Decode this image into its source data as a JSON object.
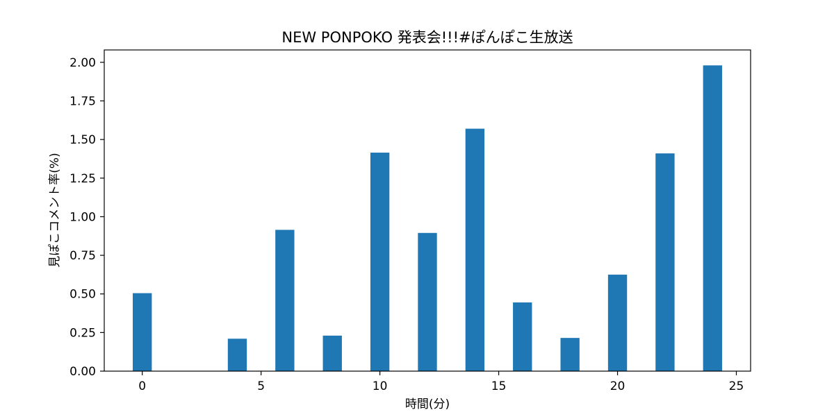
{
  "chart_data": {
    "type": "bar",
    "title": "NEW PONPOKO 発表会!!!#ぽんぽこ生放送",
    "xlabel": "時間(分)",
    "ylabel": "見ぽこコメント率(%)",
    "x": [
      0,
      4,
      6,
      8,
      10,
      12,
      14,
      16,
      18,
      20,
      22,
      24
    ],
    "values": [
      0.505,
      0.21,
      0.915,
      0.23,
      1.415,
      0.895,
      1.57,
      0.445,
      0.215,
      0.625,
      1.41,
      1.98
    ],
    "bar_width": 0.8,
    "xlim": [
      -1.6,
      25.6
    ],
    "ylim": [
      0,
      2.08
    ],
    "xticks": [
      0,
      5,
      10,
      15,
      20,
      25
    ],
    "xtick_labels": [
      "0",
      "5",
      "10",
      "15",
      "20",
      "25"
    ],
    "yticks": [
      0,
      0.25,
      0.5,
      0.75,
      1.0,
      1.25,
      1.5,
      1.75,
      2.0
    ],
    "ytick_labels": [
      "0.00",
      "0.25",
      "0.50",
      "0.75",
      "1.00",
      "1.25",
      "1.50",
      "1.75",
      "2.00"
    ],
    "bar_color": "#1f77b4",
    "grid": false,
    "legend": "none"
  }
}
